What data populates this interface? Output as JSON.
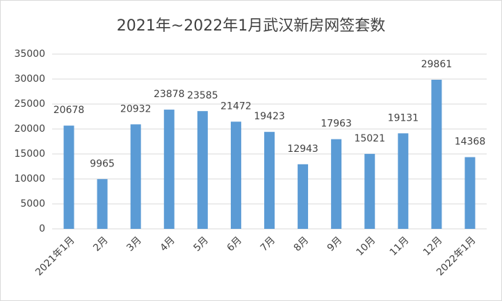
{
  "chart_data": {
    "type": "bar",
    "title": "2021年~2022年1月武汉新房网签套数",
    "categories": [
      "2021年1月",
      "2月",
      "3月",
      "4月",
      "5月",
      "6月",
      "7月",
      "8月",
      "9月",
      "10月",
      "11月",
      "12月",
      "2022年1月"
    ],
    "values": [
      20678,
      9965,
      20932,
      23878,
      23585,
      21472,
      19423,
      12943,
      17963,
      15021,
      19131,
      29861,
      14368
    ],
    "color": "#5b9bd5",
    "ylim": [
      0,
      35000
    ],
    "yticks": [
      0,
      5000,
      10000,
      15000,
      20000,
      25000,
      30000,
      35000
    ],
    "grid": true
  }
}
